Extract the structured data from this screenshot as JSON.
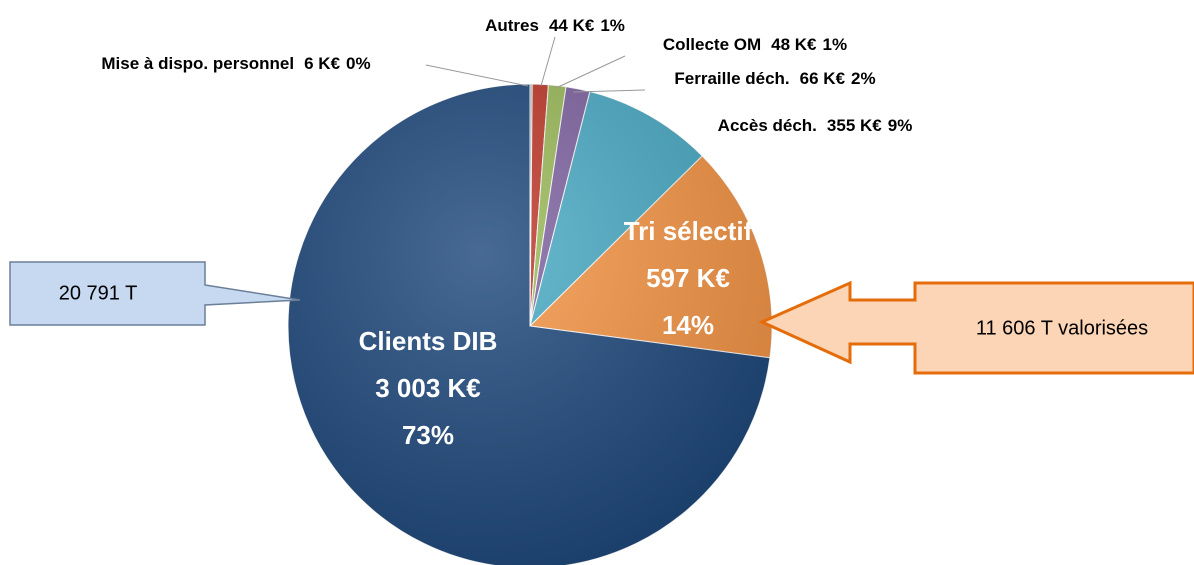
{
  "chart_data": {
    "type": "pie",
    "categories": [
      "Mise à dispo. personnel",
      "Autres",
      "Collecte OM",
      "Ferraille déch.",
      "Accès déch.",
      "Tri sélectif",
      "Clients DIB"
    ],
    "values": [
      6,
      44,
      48,
      66,
      355,
      597,
      3003
    ],
    "value_labels": [
      "6 K€",
      "44 K€",
      "48 K€",
      "66 K€",
      "355 K€",
      "597 K€",
      "3 003 K€"
    ],
    "percent_labels": [
      "0%",
      "1%",
      "1%",
      "2%",
      "9%",
      "14%",
      "73%"
    ],
    "colors": [
      "#a6a6a6",
      "#c0392b",
      "#9bbb59",
      "#8064a2",
      "#4bacc6",
      "#f79646",
      "#1f497d"
    ],
    "annotations": [
      "20 791 T",
      "11 606 T valorisées"
    ]
  }
}
